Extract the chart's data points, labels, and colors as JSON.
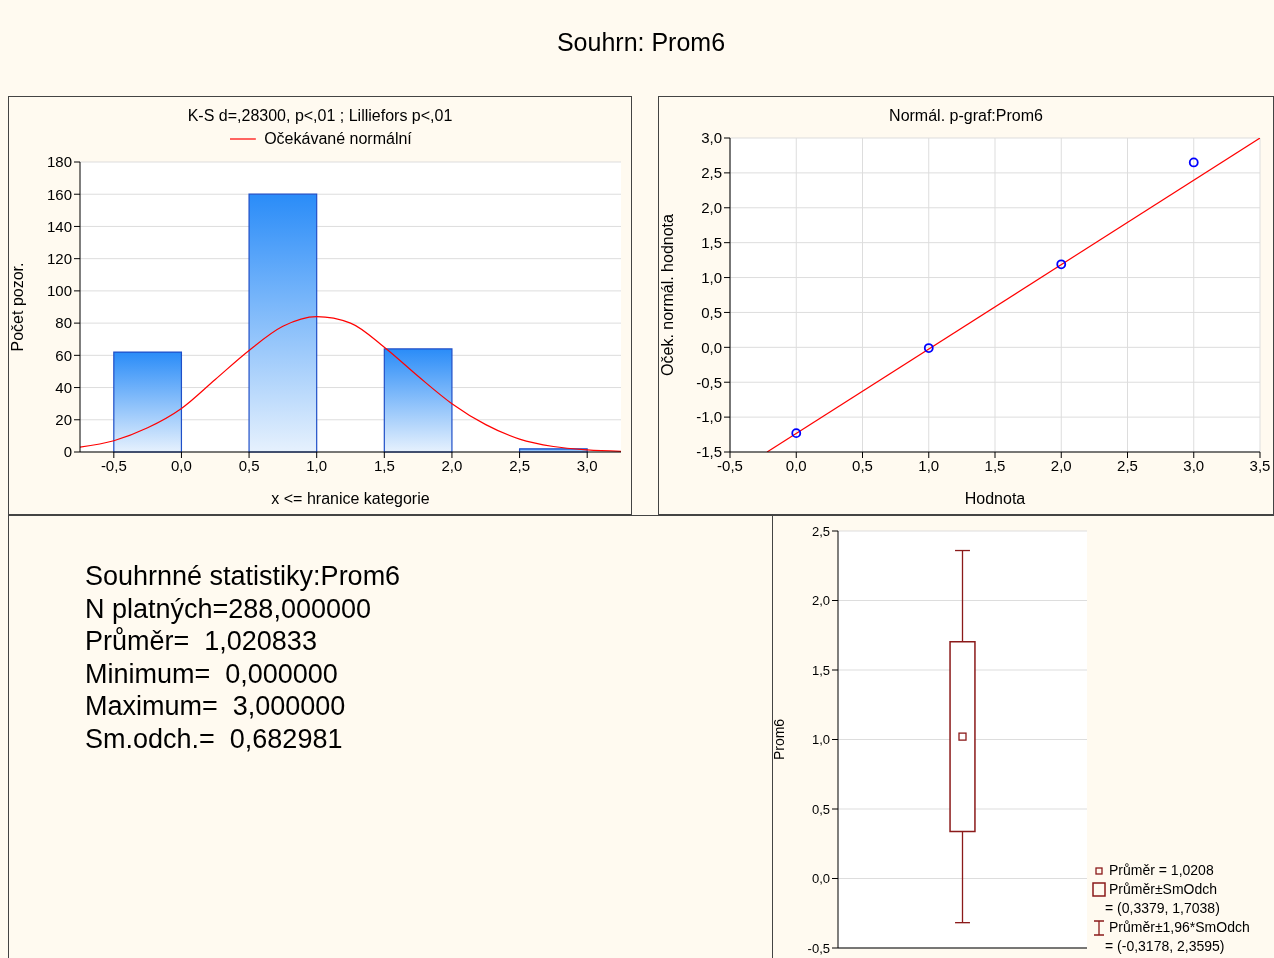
{
  "chart_data": [
    {
      "type": "other",
      "title": "Souhrn: Prom6"
    },
    {
      "type": "histogram",
      "title": "K-S d=,28300, p<,01 ; Lilliefors p<,01",
      "xlabel": "x <= hranice kategorie",
      "ylabel": "Počet pozor.",
      "bins": [
        -0.5,
        0,
        0.5,
        1,
        1.5,
        2,
        2.5,
        3
      ],
      "values": [
        62,
        0,
        160,
        0,
        64,
        0,
        2
      ],
      "color": "#1f4fc8",
      "xlim": [
        -0.75,
        3.25
      ],
      "xticks": [
        {
          "value": -0.5,
          "label": "-0,5"
        },
        {
          "value": 0,
          "label": "0,0"
        },
        {
          "value": 0.5,
          "label": "0,5"
        },
        {
          "value": 1,
          "label": "1,0"
        },
        {
          "value": 1.5,
          "label": "1,5"
        },
        {
          "value": 2,
          "label": "2,0"
        },
        {
          "value": 2.5,
          "label": "2,5"
        },
        {
          "value": 3,
          "label": "3,0"
        }
      ],
      "ylim": [
        0,
        180
      ],
      "yticks": [
        0,
        20,
        40,
        60,
        80,
        100,
        120,
        140,
        160,
        180
      ],
      "grid": "y",
      "legend": "top",
      "series": [
        {
          "type": "line",
          "name": "Očekávané normální",
          "color": "#ff0000",
          "marker": "none",
          "x": [
            -0.75,
            -0.5,
            -0.25,
            0,
            0.25,
            0.5,
            0.75,
            1,
            1.25,
            1.5,
            1.75,
            2,
            2.25,
            2.5,
            2.75,
            3,
            3.25
          ],
          "values": [
            3,
            7,
            15,
            27,
            45,
            63,
            78,
            84,
            80,
            65,
            47,
            30,
            17,
            8,
            3.4,
            1.3,
            0.4
          ]
        }
      ]
    },
    {
      "type": "scatter",
      "title": "Normál. p-graf:Prom6",
      "xlabel": "Hodnota",
      "ylabel": "Oček. normál. hodnota",
      "xlim": [
        -0.5,
        3.5
      ],
      "xticks": [
        {
          "value": -0.5,
          "label": "-0,5"
        },
        {
          "value": 0,
          "label": "0,0"
        },
        {
          "value": 0.5,
          "label": "0,5"
        },
        {
          "value": 1,
          "label": "1,0"
        },
        {
          "value": 1.5,
          "label": "1,5"
        },
        {
          "value": 2,
          "label": "2,0"
        },
        {
          "value": 2.5,
          "label": "2,5"
        },
        {
          "value": 3,
          "label": "3,0"
        },
        {
          "value": 3.5,
          "label": "3,5"
        }
      ],
      "ylim": [
        -1.5,
        3
      ],
      "yticks": [
        {
          "value": -1.5,
          "label": "-1,5"
        },
        {
          "value": -1,
          "label": "-1,0"
        },
        {
          "value": -0.5,
          "label": "-0,5"
        },
        {
          "value": 0,
          "label": "0,0"
        },
        {
          "value": 0.5,
          "label": "0,5"
        },
        {
          "value": 1,
          "label": "1,0"
        },
        {
          "value": 1.5,
          "label": "1,5"
        },
        {
          "value": 2,
          "label": "2,0"
        },
        {
          "value": 2.5,
          "label": "2,5"
        },
        {
          "value": 3,
          "label": "3,0"
        }
      ],
      "grid": true,
      "marker": "circle",
      "series": [
        {
          "color": "#0000ff",
          "x": [
            0,
            1,
            2,
            3
          ],
          "values": [
            -1.23,
            -0.01,
            1.19,
            2.65
          ]
        },
        {
          "type": "line",
          "marker": "none",
          "color": "#ff0000",
          "x": [
            -0.22,
            3.5
          ],
          "values": [
            -1.5,
            3.0
          ]
        }
      ]
    },
    {
      "type": "other",
      "title": "Souhrnné statistiky:Prom6",
      "annotations": [
        "N platných=288,000000",
        "Průměr=  1,020833",
        "Minimum=  0,000000",
        "Maximum=  3,000000",
        "Sm.odch.=  0,682981"
      ]
    },
    {
      "type": "box",
      "categories": [
        null
      ],
      "boxes": [
        {
          "low": -0.3178,
          "q1": 0.3379,
          "q3": 1.7038,
          "high": 2.3595,
          "mean": 1.0208
        }
      ],
      "color": "#8b1a1a",
      "ylabel": "Prom6",
      "ylim": [
        -0.5,
        2.5
      ],
      "yticks": [
        {
          "value": -0.5,
          "label": "-0,5"
        },
        {
          "value": 0,
          "label": "0,0"
        },
        {
          "value": 0.5,
          "label": "0,5"
        },
        {
          "value": 1,
          "label": "1,0"
        },
        {
          "value": 1.5,
          "label": "1,5"
        },
        {
          "value": 2,
          "label": "2,0"
        },
        {
          "value": 2.5,
          "label": "2,5"
        }
      ],
      "grid": "y",
      "tick_labels": "y",
      "annotations": [
        "Průměr = 1,0208",
        "Průměr±SmOdch",
        "= (0,3379, 1,7038)",
        "Průměr±1,96*SmOdch",
        "= (-0,3178, 2,3595)"
      ]
    }
  ]
}
